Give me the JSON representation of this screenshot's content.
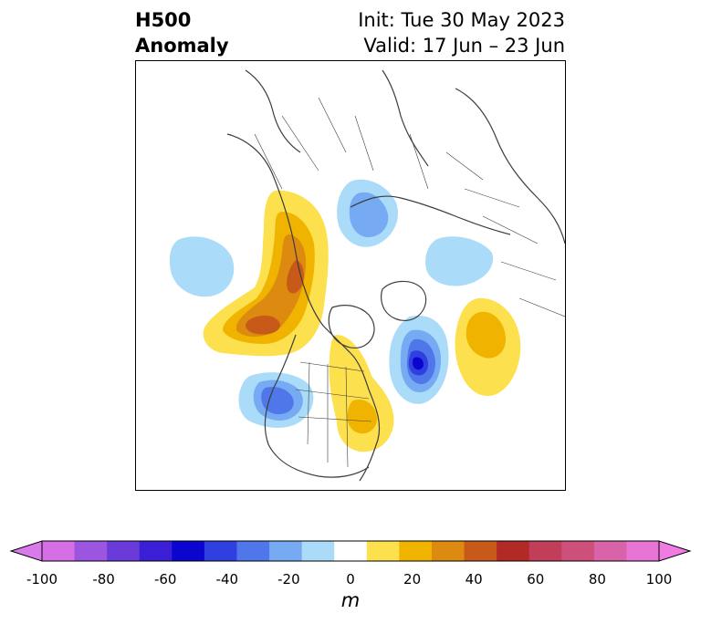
{
  "header": {
    "variable": "H500",
    "subtitle": "Anomaly",
    "init": "Init: Tue 30 May 2023",
    "valid": "Valid: 17 Jun – 23 Jun"
  },
  "colorbar": {
    "units": "m",
    "ticks": [
      "-100",
      "-80",
      "-60",
      "-40",
      "-20",
      "0",
      "20",
      "40",
      "60",
      "80",
      "100"
    ],
    "levels": [
      -100,
      -90,
      -80,
      -70,
      -60,
      -50,
      -40,
      -30,
      -20,
      -10,
      10,
      20,
      30,
      40,
      50,
      60,
      70,
      80,
      90,
      100
    ],
    "colors": [
      "#d66fe6",
      "#9b55df",
      "#6a3bd8",
      "#3a1fd6",
      "#0a06cf",
      "#2f3fe0",
      "#4f77ea",
      "#76aaf2",
      "#aadbf9",
      "#ffffff",
      "#fde04d",
      "#f0b400",
      "#dc8a10",
      "#c75a18",
      "#b22a26",
      "#c03e58",
      "#cc5079",
      "#d963a8",
      "#e874d6"
    ],
    "under_color": "#d97aea",
    "over_color": "#ef7be3"
  },
  "map": {
    "projection": "polar-stereographic",
    "anomalies": [
      {
        "region": "western Canada / Pacific Northwest",
        "sign": "positive",
        "peak_m": 50
      },
      {
        "region": "Great Lakes / Ohio Valley",
        "sign": "positive",
        "peak_m": 20
      },
      {
        "region": "North Atlantic east of Greenland",
        "sign": "positive",
        "peak_m": 30
      },
      {
        "region": "Labrador Sea / southern Greenland",
        "sign": "negative",
        "peak_m": -60
      },
      {
        "region": "US Southwest / Great Basin",
        "sign": "negative",
        "peak_m": -50
      },
      {
        "region": "central Siberia",
        "sign": "negative",
        "peak_m": -30
      },
      {
        "region": "Barents / Kara Sea",
        "sign": "negative",
        "peak_m": -20
      },
      {
        "region": "North Pacific (Aleutians)",
        "sign": "negative",
        "peak_m": -20
      }
    ]
  }
}
